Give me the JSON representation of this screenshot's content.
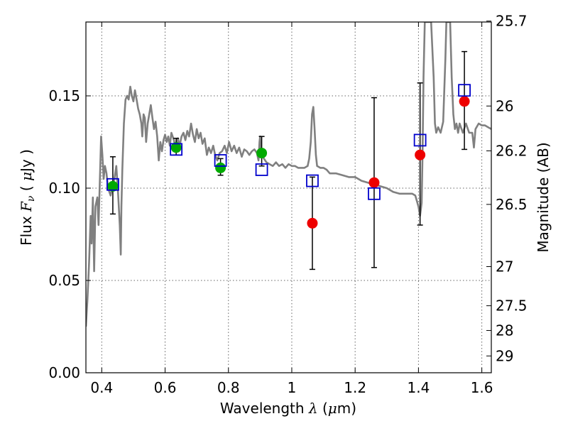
{
  "chart_data": {
    "type": "scatter",
    "xlabel": {
      "pre": "Wavelength  ",
      "symbol": "λ",
      "post": " (",
      "mu": "μ",
      "unit": "m)"
    },
    "ylabel": {
      "pre": "Flux  ",
      "symbol": "F",
      "sub": "ν",
      "post": "  (  ",
      "mu": "μ",
      "unit": "Jy  )"
    },
    "y2label": "Magnitude (AB)",
    "xlim": [
      0.35,
      1.63
    ],
    "ylim": [
      0.0,
      0.19
    ],
    "grid": true,
    "x_ticks": [
      0.4,
      0.6,
      0.8,
      1.0,
      1.2,
      1.4,
      1.6
    ],
    "x_tick_labels": [
      "0.4",
      "0.6",
      "0.8",
      "1",
      "1.2",
      "1.4",
      "1.6"
    ],
    "y_ticks": [
      0.0,
      0.05,
      0.1,
      0.15
    ],
    "y_tick_labels": [
      "0.00",
      "0.05",
      "0.10",
      "0.15"
    ],
    "y2_ticks": [
      {
        "label": "25.7",
        "flux": 0.1905
      },
      {
        "label": "26",
        "flux": 0.1445
      },
      {
        "label": "26.2",
        "flux": 0.1202
      },
      {
        "label": "26.5",
        "flux": 0.0912
      },
      {
        "label": "27",
        "flux": 0.0575
      },
      {
        "label": "27.5",
        "flux": 0.0363
      },
      {
        "label": "28",
        "flux": 0.0229
      },
      {
        "label": "29",
        "flux": 0.0091
      }
    ],
    "colors": {
      "spectrum": "#808080",
      "green_points": "#00aa00",
      "red_points": "#ee0000",
      "model_squares": "#0000cc",
      "error_bars": "#000000",
      "grid": "#666666"
    },
    "series": [
      {
        "marker": "green-circle",
        "points": [
          {
            "x": 0.435,
            "y": 0.101,
            "yerr_low": 0.086,
            "yerr_high": 0.117
          },
          {
            "x": 0.635,
            "y": 0.122,
            "yerr_low": 0.118,
            "yerr_high": 0.127
          },
          {
            "x": 0.775,
            "y": 0.111,
            "yerr_low": 0.107,
            "yerr_high": 0.116
          },
          {
            "x": 0.905,
            "y": 0.119,
            "yerr_low": 0.112,
            "yerr_high": 0.128
          }
        ]
      },
      {
        "marker": "red-circle",
        "points": [
          {
            "x": 1.065,
            "y": 0.081,
            "yerr_low": 0.056,
            "yerr_high": 0.106
          },
          {
            "x": 1.26,
            "y": 0.103,
            "yerr_low": 0.057,
            "yerr_high": 0.149
          },
          {
            "x": 1.405,
            "y": 0.118,
            "yerr_low": 0.08,
            "yerr_high": 0.157
          },
          {
            "x": 1.545,
            "y": 0.147,
            "yerr_low": 0.121,
            "yerr_high": 0.174
          }
        ]
      },
      {
        "marker": "blue-square",
        "points": [
          {
            "x": 0.435,
            "y": 0.102
          },
          {
            "x": 0.635,
            "y": 0.121
          },
          {
            "x": 0.775,
            "y": 0.115
          },
          {
            "x": 0.905,
            "y": 0.11
          },
          {
            "x": 1.065,
            "y": 0.104
          },
          {
            "x": 1.26,
            "y": 0.097
          },
          {
            "x": 1.405,
            "y": 0.126
          },
          {
            "x": 1.545,
            "y": 0.153
          }
        ]
      },
      {
        "marker": "line",
        "points": [
          [
            0.35,
            0.025
          ],
          [
            0.355,
            0.04
          ],
          [
            0.36,
            0.06
          ],
          [
            0.365,
            0.085
          ],
          [
            0.368,
            0.07
          ],
          [
            0.372,
            0.095
          ],
          [
            0.376,
            0.055
          ],
          [
            0.38,
            0.09
          ],
          [
            0.386,
            0.095
          ],
          [
            0.39,
            0.08
          ],
          [
            0.395,
            0.11
          ],
          [
            0.398,
            0.128
          ],
          [
            0.402,
            0.118
          ],
          [
            0.406,
            0.105
          ],
          [
            0.41,
            0.112
          ],
          [
            0.415,
            0.108
          ],
          [
            0.42,
            0.1
          ],
          [
            0.428,
            0.096
          ],
          [
            0.433,
            0.1
          ],
          [
            0.44,
            0.105
          ],
          [
            0.446,
            0.112
          ],
          [
            0.452,
            0.096
          ],
          [
            0.457,
            0.08
          ],
          [
            0.46,
            0.064
          ],
          [
            0.462,
            0.09
          ],
          [
            0.465,
            0.11
          ],
          [
            0.47,
            0.135
          ],
          [
            0.475,
            0.148
          ],
          [
            0.48,
            0.15
          ],
          [
            0.485,
            0.148
          ],
          [
            0.49,
            0.155
          ],
          [
            0.495,
            0.15
          ],
          [
            0.5,
            0.147
          ],
          [
            0.505,
            0.153
          ],
          [
            0.51,
            0.148
          ],
          [
            0.515,
            0.143
          ],
          [
            0.52,
            0.14
          ],
          [
            0.525,
            0.135
          ],
          [
            0.528,
            0.128
          ],
          [
            0.532,
            0.14
          ],
          [
            0.536,
            0.138
          ],
          [
            0.54,
            0.125
          ],
          [
            0.545,
            0.135
          ],
          [
            0.55,
            0.14
          ],
          [
            0.555,
            0.145
          ],
          [
            0.56,
            0.138
          ],
          [
            0.565,
            0.132
          ],
          [
            0.57,
            0.136
          ],
          [
            0.575,
            0.128
          ],
          [
            0.58,
            0.115
          ],
          [
            0.585,
            0.125
          ],
          [
            0.59,
            0.12
          ],
          [
            0.595,
            0.126
          ],
          [
            0.6,
            0.129
          ],
          [
            0.605,
            0.125
          ],
          [
            0.61,
            0.128
          ],
          [
            0.615,
            0.123
          ],
          [
            0.62,
            0.13
          ],
          [
            0.628,
            0.126
          ],
          [
            0.634,
            0.12
          ],
          [
            0.64,
            0.127
          ],
          [
            0.646,
            0.123
          ],
          [
            0.652,
            0.128
          ],
          [
            0.658,
            0.13
          ],
          [
            0.664,
            0.126
          ],
          [
            0.67,
            0.131
          ],
          [
            0.676,
            0.128
          ],
          [
            0.682,
            0.135
          ],
          [
            0.688,
            0.129
          ],
          [
            0.694,
            0.125
          ],
          [
            0.7,
            0.132
          ],
          [
            0.706,
            0.127
          ],
          [
            0.712,
            0.13
          ],
          [
            0.718,
            0.124
          ],
          [
            0.725,
            0.127
          ],
          [
            0.732,
            0.118
          ],
          [
            0.738,
            0.122
          ],
          [
            0.745,
            0.119
          ],
          [
            0.752,
            0.123
          ],
          [
            0.758,
            0.118
          ],
          [
            0.765,
            0.115
          ],
          [
            0.772,
            0.119
          ],
          [
            0.78,
            0.12
          ],
          [
            0.788,
            0.123
          ],
          [
            0.795,
            0.119
          ],
          [
            0.802,
            0.125
          ],
          [
            0.81,
            0.12
          ],
          [
            0.818,
            0.123
          ],
          [
            0.826,
            0.119
          ],
          [
            0.834,
            0.122
          ],
          [
            0.842,
            0.117
          ],
          [
            0.85,
            0.121
          ],
          [
            0.858,
            0.12
          ],
          [
            0.866,
            0.118
          ],
          [
            0.874,
            0.12
          ],
          [
            0.882,
            0.121
          ],
          [
            0.89,
            0.119
          ],
          [
            0.895,
            0.115
          ],
          [
            0.898,
            0.125
          ],
          [
            0.9,
            0.128
          ],
          [
            0.902,
            0.12
          ],
          [
            0.906,
            0.118
          ],
          [
            0.912,
            0.116
          ],
          [
            0.92,
            0.114
          ],
          [
            0.93,
            0.113
          ],
          [
            0.94,
            0.112
          ],
          [
            0.95,
            0.114
          ],
          [
            0.96,
            0.112
          ],
          [
            0.97,
            0.113
          ],
          [
            0.98,
            0.111
          ],
          [
            0.99,
            0.113
          ],
          [
            1.0,
            0.112
          ],
          [
            1.01,
            0.112
          ],
          [
            1.02,
            0.111
          ],
          [
            1.03,
            0.111
          ],
          [
            1.04,
            0.111
          ],
          [
            1.05,
            0.112
          ],
          [
            1.055,
            0.116
          ],
          [
            1.06,
            0.125
          ],
          [
            1.064,
            0.14
          ],
          [
            1.068,
            0.144
          ],
          [
            1.072,
            0.132
          ],
          [
            1.076,
            0.118
          ],
          [
            1.08,
            0.112
          ],
          [
            1.09,
            0.111
          ],
          [
            1.1,
            0.111
          ],
          [
            1.11,
            0.11
          ],
          [
            1.12,
            0.108
          ],
          [
            1.14,
            0.108
          ],
          [
            1.16,
            0.107
          ],
          [
            1.18,
            0.106
          ],
          [
            1.2,
            0.106
          ],
          [
            1.22,
            0.104
          ],
          [
            1.24,
            0.103
          ],
          [
            1.26,
            0.102
          ],
          [
            1.28,
            0.101
          ],
          [
            1.3,
            0.1
          ],
          [
            1.32,
            0.098
          ],
          [
            1.34,
            0.097
          ],
          [
            1.36,
            0.097
          ],
          [
            1.38,
            0.097
          ],
          [
            1.39,
            0.096
          ],
          [
            1.395,
            0.093
          ],
          [
            1.4,
            0.09
          ],
          [
            1.405,
            0.085
          ],
          [
            1.41,
            0.092
          ],
          [
            1.413,
            0.12
          ],
          [
            1.416,
            0.16
          ],
          [
            1.42,
            0.19
          ],
          [
            1.43,
            0.19
          ],
          [
            1.44,
            0.19
          ],
          [
            1.448,
            0.16
          ],
          [
            1.452,
            0.135
          ],
          [
            1.456,
            0.13
          ],
          [
            1.462,
            0.133
          ],
          [
            1.47,
            0.13
          ],
          [
            1.478,
            0.136
          ],
          [
            1.485,
            0.17
          ],
          [
            1.488,
            0.19
          ],
          [
            1.5,
            0.19
          ],
          [
            1.505,
            0.16
          ],
          [
            1.51,
            0.14
          ],
          [
            1.515,
            0.132
          ],
          [
            1.52,
            0.135
          ],
          [
            1.525,
            0.13
          ],
          [
            1.53,
            0.135
          ],
          [
            1.54,
            0.13
          ],
          [
            1.55,
            0.135
          ],
          [
            1.56,
            0.13
          ],
          [
            1.57,
            0.13
          ],
          [
            1.575,
            0.122
          ],
          [
            1.58,
            0.132
          ],
          [
            1.59,
            0.135
          ],
          [
            1.6,
            0.134
          ],
          [
            1.61,
            0.134
          ],
          [
            1.62,
            0.133
          ],
          [
            1.63,
            0.132
          ]
        ]
      }
    ]
  }
}
